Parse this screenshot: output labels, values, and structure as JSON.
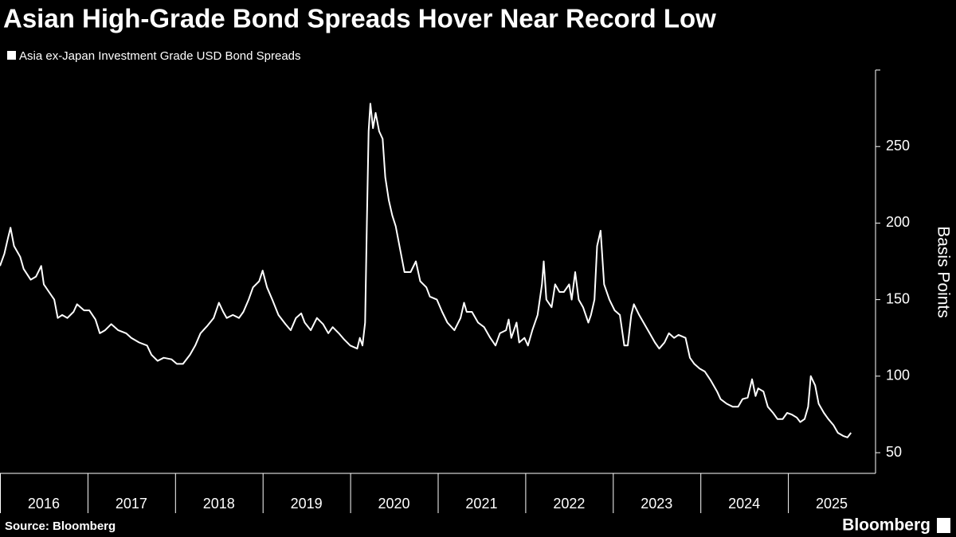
{
  "chart_data": {
    "type": "line",
    "title": "Asian High-Grade Bond Spreads Hover Near Record Low",
    "y_label": "Basis Points",
    "source": "Source: Bloomberg",
    "brand": "Bloomberg",
    "xlim": [
      2016,
      2026
    ],
    "xticks": [
      2016,
      2017,
      2018,
      2019,
      2020,
      2021,
      2022,
      2023,
      2024,
      2025
    ],
    "ylim": [
      36.5,
      300
    ],
    "yticks": [
      50,
      100,
      150,
      200,
      250
    ],
    "grid": false,
    "x": [
      2016.0,
      2016.05,
      2016.09,
      2016.12,
      2016.16,
      2016.23,
      2016.27,
      2016.35,
      2016.41,
      2016.47,
      2016.5,
      2016.56,
      2016.62,
      2016.66,
      2016.71,
      2016.77,
      2016.84,
      2016.88,
      2016.96,
      2017.02,
      2017.09,
      2017.14,
      2017.2,
      2017.27,
      2017.35,
      2017.44,
      2017.5,
      2017.59,
      2017.68,
      2017.73,
      2017.8,
      2017.87,
      2017.96,
      2018.02,
      2018.09,
      2018.17,
      2018.23,
      2018.29,
      2018.37,
      2018.44,
      2018.5,
      2018.55,
      2018.59,
      2018.66,
      2018.73,
      2018.78,
      2018.84,
      2018.89,
      2018.96,
      2019.0,
      2019.05,
      2019.11,
      2019.18,
      2019.26,
      2019.32,
      2019.38,
      2019.44,
      2019.48,
      2019.55,
      2019.62,
      2019.69,
      2019.75,
      2019.8,
      2019.87,
      2019.93,
      2020.0,
      2020.08,
      2020.11,
      2020.14,
      2020.17,
      2020.19,
      2020.21,
      2020.23,
      2020.26,
      2020.29,
      2020.33,
      2020.37,
      2020.4,
      2020.44,
      2020.48,
      2020.52,
      2020.58,
      2020.62,
      2020.69,
      2020.75,
      2020.8,
      2020.87,
      2020.91,
      2020.99,
      2021.05,
      2021.11,
      2021.19,
      2021.26,
      2021.3,
      2021.33,
      2021.39,
      2021.46,
      2021.53,
      2021.6,
      2021.66,
      2021.71,
      2021.78,
      2021.81,
      2021.84,
      2021.9,
      2021.93,
      2021.99,
      2022.03,
      2022.08,
      2022.14,
      2022.19,
      2022.21,
      2022.24,
      2022.3,
      2022.34,
      2022.39,
      2022.44,
      2022.5,
      2022.53,
      2022.57,
      2022.61,
      2022.66,
      2022.72,
      2022.75,
      2022.79,
      2022.82,
      2022.86,
      2022.9,
      2022.96,
      2023.02,
      2023.08,
      2023.13,
      2023.17,
      2023.21,
      2023.24,
      2023.3,
      2023.35,
      2023.42,
      2023.48,
      2023.53,
      2023.59,
      2023.64,
      2023.7,
      2023.75,
      2023.83,
      2023.88,
      2023.93,
      2023.99,
      2024.05,
      2024.12,
      2024.19,
      2024.23,
      2024.3,
      2024.37,
      2024.43,
      2024.48,
      2024.54,
      2024.59,
      2024.63,
      2024.66,
      2024.72,
      2024.77,
      2024.83,
      2024.88,
      2024.94,
      2024.99,
      2025.04,
      2025.1,
      2025.14,
      2025.19,
      2025.23,
      2025.26,
      2025.31,
      2025.35,
      2025.41,
      2025.46,
      2025.52,
      2025.57,
      2025.63,
      2025.68,
      2025.72
    ],
    "series": [
      {
        "name": "Asia ex-Japan Investment Grade USD Bond Spreads",
        "color": "#ffffff",
        "values": [
          172,
          180,
          190,
          197,
          185,
          178,
          170,
          163,
          165,
          172,
          160,
          155,
          150,
          138,
          140,
          138,
          142,
          147,
          143,
          143,
          137,
          128,
          130,
          134,
          130,
          128,
          125,
          122,
          120,
          114,
          110,
          112,
          111,
          108,
          108,
          114,
          120,
          128,
          133,
          138,
          148,
          142,
          138,
          140,
          138,
          142,
          150,
          158,
          162,
          169,
          158,
          150,
          140,
          134,
          130,
          138,
          141,
          135,
          130,
          138,
          134,
          128,
          132,
          128,
          124,
          120,
          118,
          125,
          120,
          135,
          200,
          260,
          278,
          262,
          272,
          260,
          255,
          230,
          215,
          205,
          198,
          180,
          168,
          168,
          175,
          162,
          158,
          152,
          150,
          142,
          135,
          130,
          138,
          148,
          142,
          142,
          135,
          132,
          125,
          120,
          128,
          130,
          137,
          125,
          135,
          122,
          125,
          120,
          130,
          140,
          160,
          175,
          150,
          145,
          160,
          155,
          155,
          160,
          150,
          168,
          150,
          145,
          135,
          140,
          150,
          185,
          195,
          160,
          150,
          143,
          140,
          120,
          120,
          140,
          147,
          140,
          135,
          128,
          122,
          118,
          122,
          128,
          125,
          127,
          125,
          112,
          108,
          105,
          103,
          97,
          90,
          85,
          82,
          80,
          80,
          85,
          86,
          98,
          87,
          92,
          90,
          80,
          76,
          72,
          72,
          76,
          75,
          73,
          70,
          72,
          80,
          100,
          94,
          82,
          76,
          72,
          68,
          63,
          61,
          60,
          63
        ]
      }
    ]
  }
}
